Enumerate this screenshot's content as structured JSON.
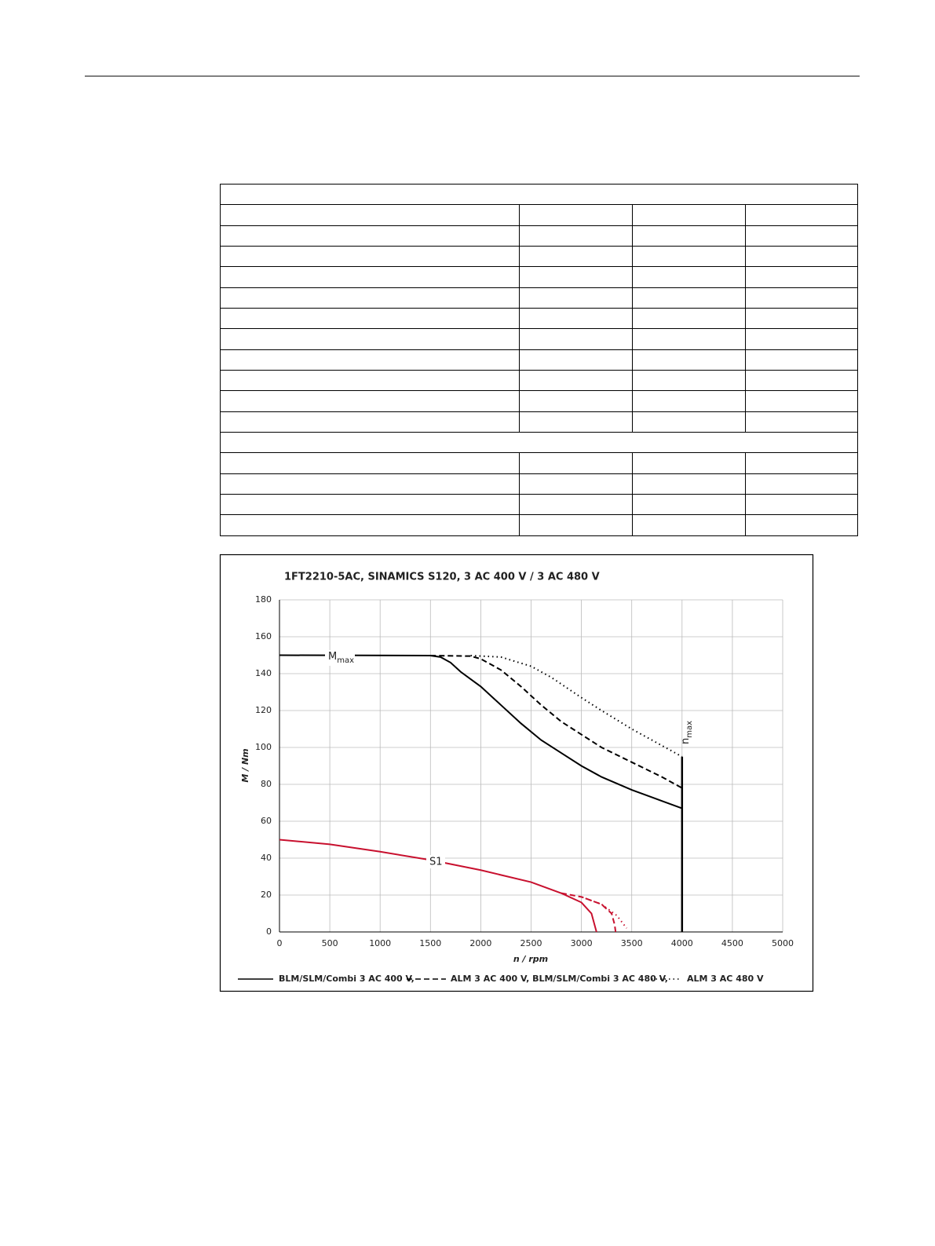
{
  "chart_data": {
    "type": "line",
    "title": "1FT2210-5AC,  SINAMICS S120,  3 AC 400 V / 3 AC 480 V",
    "x_label": "n / rpm",
    "y_label": "M / Nm",
    "xlim": [
      0,
      5000
    ],
    "ylim": [
      0,
      180
    ],
    "xticks": [
      0,
      500,
      1000,
      1500,
      2000,
      2500,
      3000,
      3500,
      4000,
      4500,
      5000
    ],
    "yticks": [
      0,
      20,
      40,
      60,
      80,
      100,
      120,
      140,
      160,
      180
    ],
    "grid": true,
    "series": [
      {
        "name": "BLM/SLM/Combi 3 AC 400 V,",
        "color": "#000000",
        "dash": "solid",
        "x": [
          0,
          1500,
          1600,
          1700,
          1800,
          1900,
          2000,
          2200,
          2400,
          2600,
          2800,
          3000,
          3200,
          3500,
          3800,
          4000
        ],
        "values": [
          150,
          149.8,
          149,
          146,
          141,
          137,
          133,
          123,
          113,
          104,
          97,
          90,
          84,
          77,
          71,
          67
        ]
      },
      {
        "name": "ALM 3 AC 400 V, BLM/SLM/Combi 3 AC 480 V,",
        "color": "#000000",
        "dash": "dashed",
        "x": [
          1500,
          1900,
          2000,
          2200,
          2400,
          2600,
          2800,
          3000,
          3200,
          3500,
          3800,
          4000
        ],
        "values": [
          149.8,
          149.5,
          148,
          142,
          133,
          123,
          114,
          107,
          100,
          92,
          84,
          78
        ]
      },
      {
        "name": "ALM 3 AC 480 V",
        "color": "#000000",
        "dash": "dotted",
        "x": [
          1900,
          2200,
          2500,
          2700,
          3000,
          3200,
          3500,
          3800,
          4000
        ],
        "values": [
          149.8,
          149,
          144,
          138,
          127,
          120,
          110,
          101,
          95
        ]
      },
      {
        "color": "#c8102e",
        "dash": "solid",
        "x": [
          0,
          500,
          1000,
          1500,
          2000,
          2500,
          2800,
          3000,
          3100,
          3150
        ],
        "values": [
          50,
          47.5,
          43.5,
          39,
          33.5,
          27,
          21,
          16,
          10,
          0
        ]
      },
      {
        "color": "#c8102e",
        "dash": "dashed",
        "x": [
          2800,
          3000,
          3200,
          3300,
          3330,
          3340
        ],
        "values": [
          21,
          19,
          15,
          10,
          4,
          0
        ]
      },
      {
        "color": "#c8102e",
        "dash": "dotted",
        "x": [
          3000,
          3200,
          3350,
          3450
        ],
        "values": [
          19,
          15,
          9,
          2
        ]
      }
    ],
    "vline": {
      "x": 4000,
      "y": 95
    },
    "annotations": [
      {
        "text": "M",
        "subscript": "max"
      },
      {
        "text": "n",
        "subscript": "max"
      },
      {
        "text": "S1"
      }
    ]
  }
}
